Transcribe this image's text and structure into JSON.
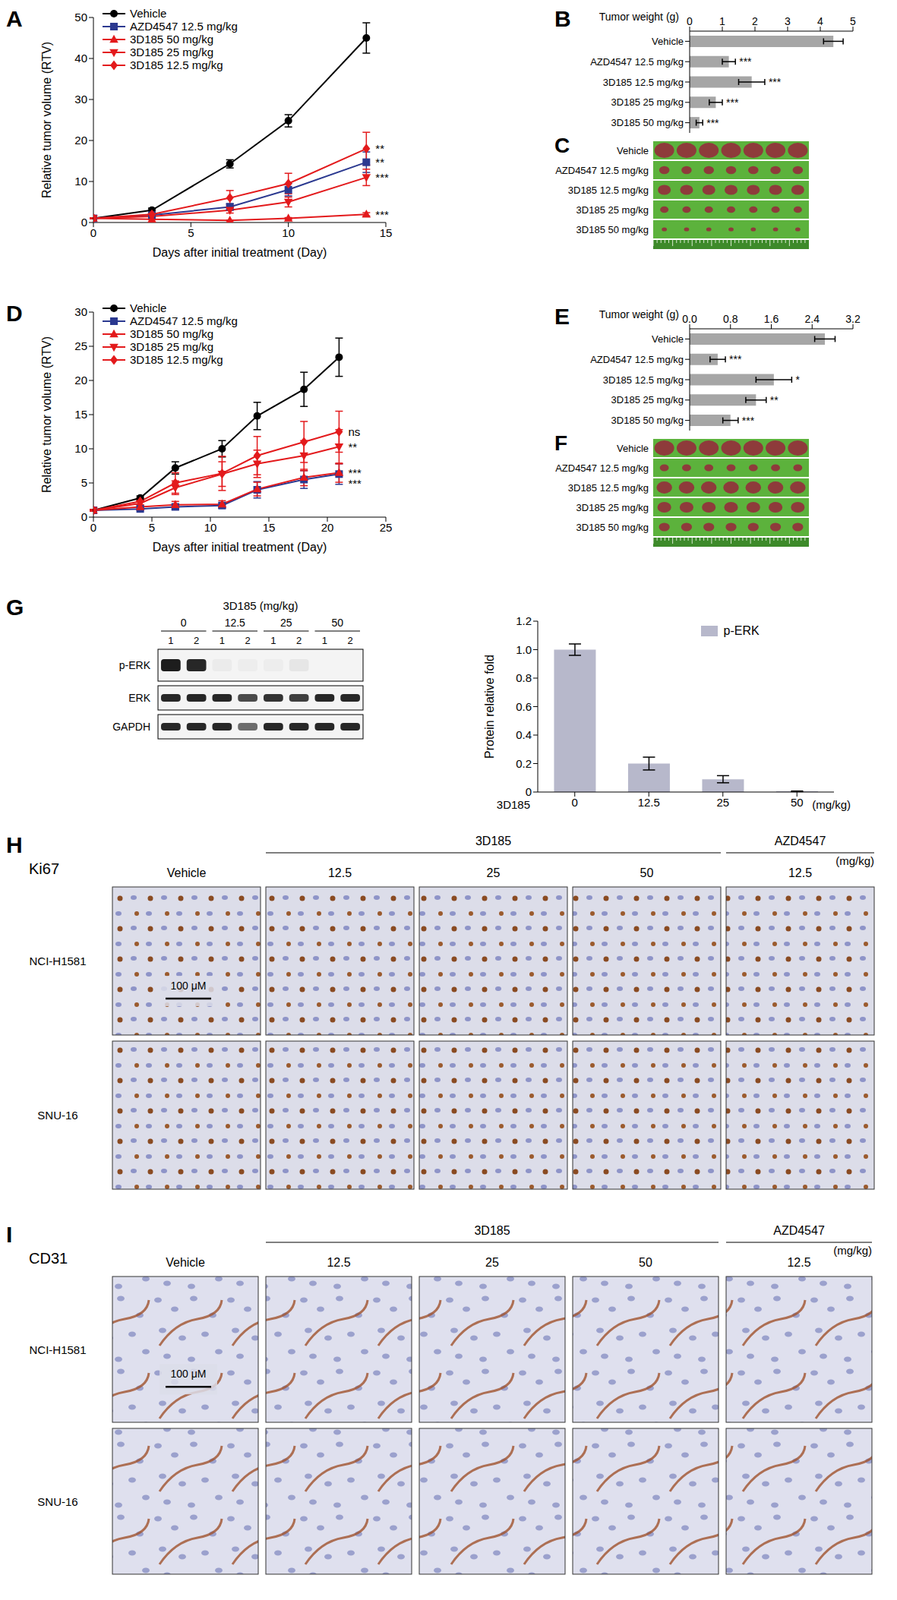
{
  "chart_data": [
    {
      "panel": "A",
      "type": "line",
      "x_label": "Days after initial treatment (Day)",
      "y_label": "Relative tumor volume (RTV)",
      "x": [
        0,
        3,
        7,
        10,
        14
      ],
      "xlim": [
        0,
        15
      ],
      "xticks": [
        0,
        5,
        10,
        15
      ],
      "ylim": [
        0,
        50
      ],
      "yticks": [
        0,
        10,
        20,
        30,
        40,
        50
      ],
      "legend": "upper left",
      "series": [
        {
          "name": "Vehicle",
          "color": "#000000",
          "marker": "circle",
          "values": [
            1,
            3,
            14.3,
            24.8,
            45
          ],
          "errors": [
            0.1,
            0.5,
            1.0,
            1.5,
            3.7
          ]
        },
        {
          "name": "AZD4547 12.5 mg/kg",
          "color": "#2b3990",
          "marker": "square",
          "values": [
            1,
            1.8,
            3.8,
            8,
            14.7
          ],
          "errors": [
            0.1,
            0.3,
            0.8,
            1.5,
            2.5
          ],
          "significance": "**"
        },
        {
          "name": "3D185 50 mg/kg",
          "color": "#e31a1c",
          "marker": "triangle",
          "values": [
            1,
            0.8,
            0.5,
            1,
            2
          ],
          "errors": [
            0.1,
            0.1,
            0.1,
            0.2,
            0.4
          ],
          "significance": "***"
        },
        {
          "name": "3D185 25 mg/kg",
          "color": "#e31a1c",
          "marker": "triangle-down",
          "values": [
            1,
            1.5,
            3,
            5,
            11
          ],
          "errors": [
            0.1,
            0.3,
            0.7,
            1.2,
            2
          ],
          "significance": "***"
        },
        {
          "name": "3D185 12.5 mg/kg",
          "color": "#e31a1c",
          "marker": "diamond",
          "values": [
            1,
            2,
            6,
            9.5,
            18
          ],
          "errors": [
            0.1,
            0.4,
            1.8,
            2.5,
            4
          ],
          "significance": "**"
        }
      ]
    },
    {
      "panel": "B",
      "type": "bar",
      "orientation": "horizontal",
      "x_label": "Tumor weight (g)",
      "categories": [
        "Vehicle",
        "AZD4547 12.5 mg/kg",
        "3D185 12.5 mg/kg",
        "3D185 25 mg/kg",
        "3D185 50 mg/kg"
      ],
      "values": [
        4.4,
        1.2,
        1.9,
        0.8,
        0.3
      ],
      "errors": [
        0.3,
        0.2,
        0.4,
        0.2,
        0.1
      ],
      "significance": [
        null,
        "***",
        "***",
        "***",
        "***"
      ],
      "xlim": [
        0,
        5
      ],
      "xticks": [
        0,
        1,
        2,
        3,
        4,
        5
      ],
      "color": "#a6a6a6"
    },
    {
      "panel": "D",
      "type": "line",
      "x_label": "Days after initial treatment (Day)",
      "y_label": "Relative tumor volume (RTV)",
      "x": [
        0,
        4,
        7,
        11,
        14,
        18,
        21
      ],
      "xlim": [
        0,
        25
      ],
      "xticks": [
        0,
        5,
        10,
        15,
        20,
        25
      ],
      "ylim": [
        0,
        30
      ],
      "yticks": [
        0,
        5,
        10,
        15,
        20,
        25,
        30
      ],
      "legend": "upper left",
      "series": [
        {
          "name": "Vehicle",
          "color": "#000000",
          "marker": "circle",
          "values": [
            1,
            2.8,
            7.2,
            10,
            14.8,
            18.7,
            23.4
          ],
          "errors": [
            0.1,
            0.3,
            0.9,
            1.2,
            2,
            2.5,
            2.8
          ]
        },
        {
          "name": "AZD4547 12.5 mg/kg",
          "color": "#2b3990",
          "marker": "square",
          "values": [
            1,
            1.2,
            1.5,
            1.7,
            4,
            5.5,
            6.3
          ],
          "errors": [
            0.1,
            0.2,
            0.4,
            0.4,
            1.2,
            1.3,
            1.5
          ],
          "significance": "***"
        },
        {
          "name": "3D185 50 mg/kg",
          "color": "#e31a1c",
          "marker": "triangle",
          "values": [
            1,
            1.5,
            1.8,
            1.9,
            4.1,
            5.8,
            6.5
          ],
          "errors": [
            0.1,
            0.3,
            0.5,
            0.5,
            1,
            1.2,
            1.4
          ],
          "significance": "***"
        },
        {
          "name": "3D185 25 mg/kg",
          "color": "#e31a1c",
          "marker": "triangle-down",
          "values": [
            1,
            2,
            4.3,
            6.3,
            7.8,
            9,
            10.3
          ],
          "errors": [
            0.1,
            0.4,
            1,
            1.8,
            2,
            2.2,
            2.5
          ],
          "significance": "**"
        },
        {
          "name": "3D185 12.5 mg/kg",
          "color": "#e31a1c",
          "marker": "diamond",
          "values": [
            1,
            2.3,
            5,
            6.4,
            9,
            11,
            12.5
          ],
          "errors": [
            0.1,
            0.5,
            1.5,
            2.5,
            2.8,
            3,
            3
          ],
          "significance": "ns"
        }
      ]
    },
    {
      "panel": "E",
      "type": "bar",
      "orientation": "horizontal",
      "x_label": "Tumor weight (g)",
      "categories": [
        "Vehicle",
        "AZD4547 12.5 mg/kg",
        "3D185 12.5 mg/kg",
        "3D185 25 mg/kg",
        "3D185 50 mg/kg"
      ],
      "values": [
        2.65,
        0.55,
        1.65,
        1.3,
        0.8
      ],
      "errors": [
        0.2,
        0.15,
        0.35,
        0.2,
        0.15
      ],
      "significance": [
        null,
        "***",
        "*",
        "**",
        "***"
      ],
      "xlim": [
        0,
        3.2
      ],
      "xticks": [
        {
          "value": 0,
          "label": "0.0"
        },
        0.8,
        1.6,
        2.4,
        3.2
      ],
      "color": "#a6a6a6"
    },
    {
      "panel": "G",
      "type": "bar",
      "y_label": "Protein relative fold",
      "x_label": "3D185",
      "x_unit": "(mg/kg)",
      "categories": [
        "0",
        "12.5",
        "25",
        "50"
      ],
      "ylim": [
        0,
        1.2
      ],
      "yticks": [
        0,
        0.2,
        0.4,
        0.6,
        0.8,
        {
          "value": 1,
          "label": "1.0"
        },
        1.2
      ],
      "legend": "upper right",
      "series": [
        {
          "name": "p-ERK",
          "color": "#b7b8cb",
          "values": [
            1.0,
            0.2,
            0.09,
            0.005
          ],
          "errors": [
            0.04,
            0.045,
            0.025,
            0.002
          ]
        }
      ]
    }
  ],
  "photos": [
    {
      "panel": "C",
      "rows": [
        "Vehicle",
        "AZD4547 12.5 mg/kg",
        "3D185 12.5 mg/kg",
        "3D185 25 mg/kg",
        "3D185 50 mg/kg"
      ]
    },
    {
      "panel": "F",
      "rows": [
        "Vehicle",
        "AZD4547 12.5 mg/kg",
        "3D185 12.5 mg/kg",
        "3D185 25 mg/kg",
        "3D185 50 mg/kg"
      ]
    }
  ],
  "blot": {
    "panel": "G",
    "title": "3D185 (mg/kg)",
    "doses": [
      "0",
      "12.5",
      "25",
      "50"
    ],
    "lanes": [
      "1",
      "2"
    ],
    "rows": [
      {
        "label": "p-ERK",
        "intensity": [
          0.95,
          0.9,
          0.04,
          0.03,
          0.03,
          0.06,
          0,
          0
        ]
      },
      {
        "label": "ERK",
        "intensity": [
          0.9,
          0.9,
          0.9,
          0.75,
          0.85,
          0.8,
          0.9,
          0.9
        ]
      },
      {
        "label": "GAPDH",
        "intensity": [
          0.9,
          0.9,
          0.9,
          0.6,
          0.9,
          0.9,
          0.9,
          0.9
        ]
      }
    ]
  },
  "ihc": [
    {
      "panel": "H",
      "stain": "Ki67",
      "unit": "(mg/kg)",
      "rows": [
        "NCI-H1581",
        "SNU-16"
      ],
      "scale_bar": "100 μM",
      "columns": [
        {
          "label": "Vehicle"
        },
        {
          "label": "12.5",
          "group": "3D185"
        },
        {
          "label": "25",
          "group": "3D185"
        },
        {
          "label": "50",
          "group": "3D185"
        },
        {
          "label": "12.5",
          "group": "AZD4547"
        }
      ]
    },
    {
      "panel": "I",
      "stain": "CD31",
      "unit": "(mg/kg)",
      "rows": [
        "NCI-H1581",
        "SNU-16"
      ],
      "scale_bar": "100 μM",
      "columns": [
        {
          "label": "Vehicle"
        },
        {
          "label": "12.5",
          "group": "3D185"
        },
        {
          "label": "25",
          "group": "3D185"
        },
        {
          "label": "50",
          "group": "3D185"
        },
        {
          "label": "12.5",
          "group": "AZD4547"
        }
      ]
    }
  ]
}
